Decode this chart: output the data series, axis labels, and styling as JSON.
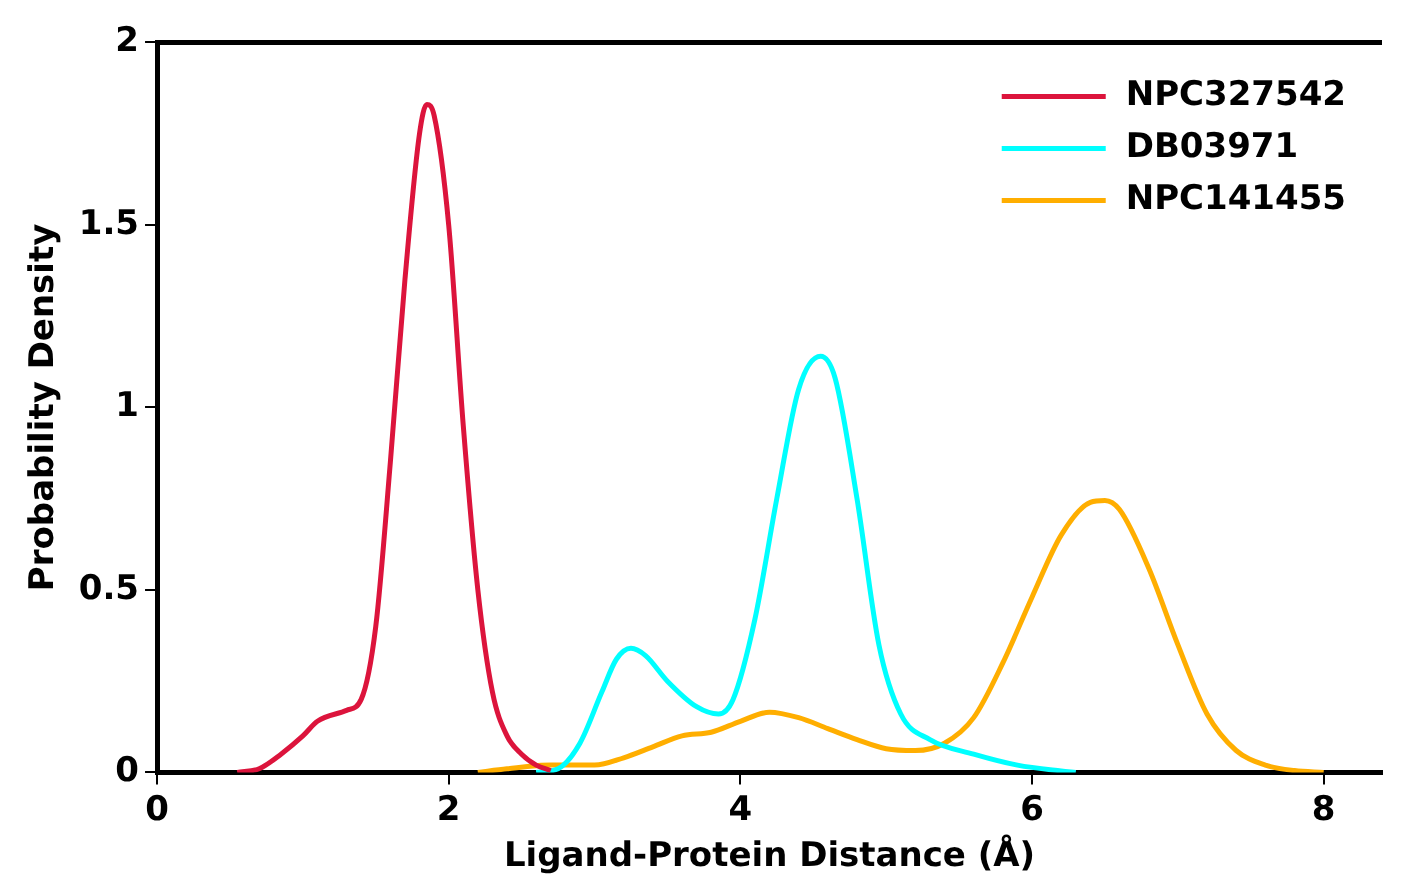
{
  "chart_data": {
    "type": "line",
    "xlabel": "Ligand-Protein Distance (Å)",
    "ylabel": "Probability Density",
    "xlim": [
      0,
      8.4
    ],
    "xticks": [
      0,
      2,
      4,
      6,
      8
    ],
    "ylim": [
      0,
      2
    ],
    "yticks": [
      0,
      0.5,
      1,
      1.5,
      2
    ],
    "grid": false,
    "legend": "top right",
    "marker": "none",
    "line_style": "solid",
    "series": [
      {
        "name": "NPC327542",
        "color": "#dc143c",
        "x": [
          0.55,
          0.7,
          0.85,
          1.0,
          1.1,
          1.3,
          1.4,
          1.5,
          1.6,
          1.7,
          1.8,
          1.85,
          1.9,
          2.0,
          2.1,
          2.2,
          2.3,
          2.4,
          2.5,
          2.6,
          2.7
        ],
        "values": [
          0,
          0.01,
          0.05,
          0.1,
          0.14,
          0.17,
          0.2,
          0.4,
          0.85,
          1.35,
          1.75,
          1.83,
          1.8,
          1.5,
          0.95,
          0.5,
          0.22,
          0.1,
          0.05,
          0.02,
          0.005
        ]
      },
      {
        "name": "DB03971",
        "color": "#00ffff",
        "x": [
          2.6,
          2.75,
          2.9,
          3.05,
          3.15,
          3.25,
          3.35,
          3.5,
          3.7,
          3.85,
          3.95,
          4.1,
          4.25,
          4.4,
          4.55,
          4.65,
          4.8,
          4.95,
          5.1,
          5.3,
          5.6,
          5.9,
          6.2,
          6.3
        ],
        "values": [
          0,
          0.01,
          0.08,
          0.22,
          0.31,
          0.34,
          0.32,
          0.25,
          0.18,
          0.16,
          0.2,
          0.42,
          0.75,
          1.05,
          1.14,
          1.08,
          0.75,
          0.35,
          0.16,
          0.09,
          0.05,
          0.02,
          0.004,
          0
        ]
      },
      {
        "name": "NPC141455",
        "color": "#ffae00",
        "x": [
          2.2,
          2.4,
          2.7,
          3.0,
          3.2,
          3.4,
          3.6,
          3.8,
          4.0,
          4.2,
          4.4,
          4.6,
          4.8,
          5.0,
          5.2,
          5.4,
          5.6,
          5.8,
          6.0,
          6.2,
          6.4,
          6.5,
          6.6,
          6.8,
          7.0,
          7.2,
          7.4,
          7.6,
          7.8,
          8.0
        ],
        "values": [
          0,
          0.01,
          0.02,
          0.02,
          0.04,
          0.07,
          0.1,
          0.11,
          0.14,
          0.165,
          0.15,
          0.12,
          0.09,
          0.065,
          0.06,
          0.08,
          0.15,
          0.3,
          0.48,
          0.65,
          0.74,
          0.745,
          0.72,
          0.56,
          0.35,
          0.16,
          0.06,
          0.02,
          0.005,
          0
        ]
      }
    ]
  }
}
